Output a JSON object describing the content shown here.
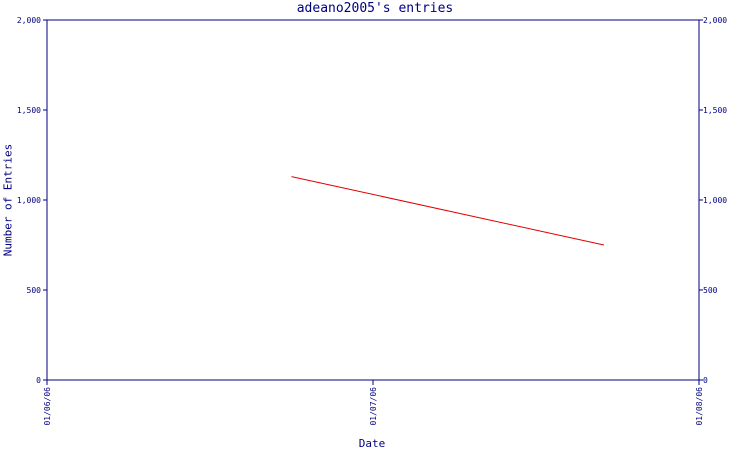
{
  "chart_data": {
    "type": "line",
    "title": "adeano2005's entries",
    "xlabel": "Date",
    "ylabel": "Number of Entries",
    "x_ticks": [
      "01/06/06",
      "01/07/06",
      "01/08/06"
    ],
    "y_ticks": [
      "0",
      "500",
      "1,000",
      "1,500",
      "2,000"
    ],
    "ylim": [
      0,
      2000
    ],
    "xlim": [
      "01/06/06",
      "01/08/06"
    ],
    "grid": false,
    "legend": "none",
    "series": [
      {
        "color": "#e00000",
        "points": [
          {
            "x": "2006-01-06T18:00",
            "y": 1130
          },
          {
            "x": "2006-01-07T17:00",
            "y": 750
          }
        ]
      }
    ],
    "axis_color": "#000080"
  }
}
